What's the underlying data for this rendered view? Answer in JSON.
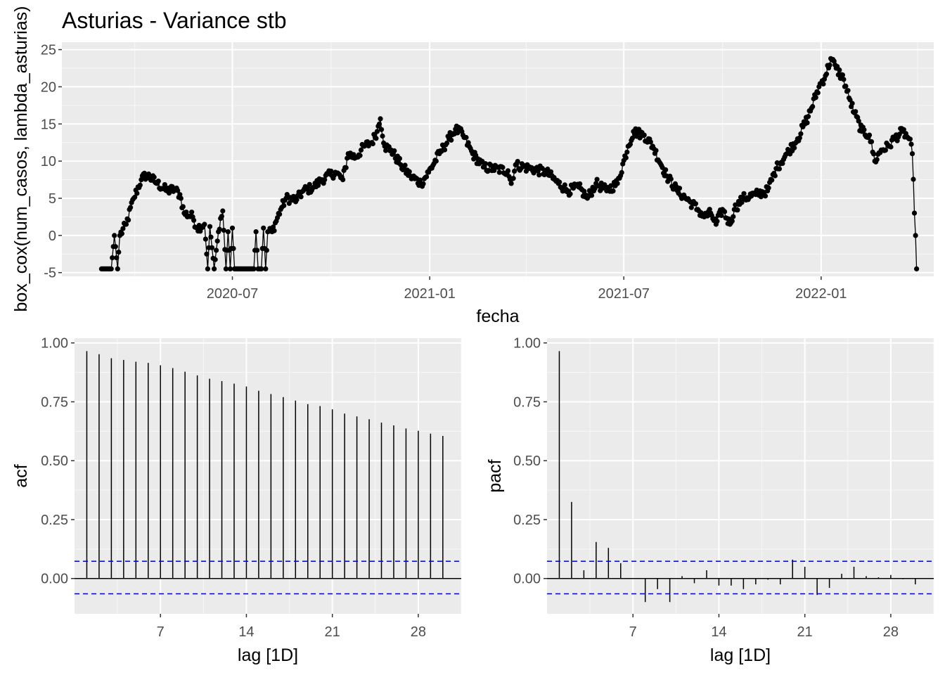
{
  "title": "Asturias - Variance stb",
  "chart_data": [
    {
      "panel": "time-series",
      "type": "line",
      "markers": true,
      "xlabel": "fecha",
      "ylabel": "box_cox(num_casos, lambda_asturias)",
      "x_ticks": [
        "2020-07",
        "2021-01",
        "2021-07",
        "2022-01"
      ],
      "y_ticks": [
        "-5",
        "0",
        "5",
        "10",
        "15",
        "20",
        "25"
      ],
      "ylim": [
        -5.5,
        26
      ],
      "xlim": [
        "2020-01-24",
        "2022-04-16"
      ],
      "grid": true,
      "anchors": [
        [
          "2020-03-01",
          -4.5
        ],
        [
          "2020-03-10",
          -4.5
        ],
        [
          "2020-03-13",
          0
        ],
        [
          "2020-03-16",
          -4.5
        ],
        [
          "2020-03-18",
          0
        ],
        [
          "2020-03-24",
          1.5
        ],
        [
          "2020-03-31",
          5
        ],
        [
          "2020-04-07",
          7.5
        ],
        [
          "2020-04-12",
          8.2
        ],
        [
          "2020-04-22",
          7
        ],
        [
          "2020-05-01",
          6
        ],
        [
          "2020-05-08",
          6.2
        ],
        [
          "2020-05-13",
          5.5
        ],
        [
          "2020-05-17",
          3
        ],
        [
          "2020-05-25",
          2.5
        ],
        [
          "2020-05-29",
          1
        ],
        [
          "2020-06-05",
          1.5
        ],
        [
          "2020-06-08",
          -4.5
        ],
        [
          "2020-06-10",
          1.2
        ],
        [
          "2020-06-14",
          -4.5
        ],
        [
          "2020-06-18",
          0.5
        ],
        [
          "2020-06-22",
          3.3
        ],
        [
          "2020-06-25",
          -4.5
        ],
        [
          "2020-06-27",
          0.5
        ],
        [
          "2020-06-29",
          -4.5
        ],
        [
          "2020-07-01",
          1
        ],
        [
          "2020-07-03",
          -4.5
        ],
        [
          "2020-07-21",
          -4.5
        ],
        [
          "2020-07-23",
          0.5
        ],
        [
          "2020-07-25",
          -4.5
        ],
        [
          "2020-07-28",
          -4.5
        ],
        [
          "2020-07-30",
          1
        ],
        [
          "2020-08-01",
          -4.5
        ],
        [
          "2020-08-03",
          0.5
        ],
        [
          "2020-08-07",
          0.5
        ],
        [
          "2020-08-15",
          3.5
        ],
        [
          "2020-08-20",
          5
        ],
        [
          "2020-08-30",
          4.8
        ],
        [
          "2020-09-05",
          6
        ],
        [
          "2020-09-15",
          6.5
        ],
        [
          "2020-09-22",
          7.5
        ],
        [
          "2020-10-05",
          8.5
        ],
        [
          "2020-10-12",
          7.5
        ],
        [
          "2020-10-17",
          11
        ],
        [
          "2020-10-24",
          10.5
        ],
        [
          "2020-11-01",
          12
        ],
        [
          "2020-11-08",
          12.5
        ],
        [
          "2020-11-13",
          14
        ],
        [
          "2020-11-16",
          15.7
        ],
        [
          "2020-11-20",
          12
        ],
        [
          "2020-11-26",
          11.5
        ],
        [
          "2020-12-05",
          9.5
        ],
        [
          "2020-12-14",
          8
        ],
        [
          "2020-12-24",
          7
        ],
        [
          "2020-12-31",
          8.5
        ],
        [
          "2021-01-10",
          11
        ],
        [
          "2021-01-19",
          13
        ],
        [
          "2021-01-25",
          14.3
        ],
        [
          "2021-02-01",
          13.5
        ],
        [
          "2021-02-10",
          11
        ],
        [
          "2021-02-20",
          9.2
        ],
        [
          "2021-03-01",
          9
        ],
        [
          "2021-03-15",
          8.7
        ],
        [
          "2021-03-18",
          7
        ],
        [
          "2021-03-22",
          9.5
        ],
        [
          "2021-04-05",
          9
        ],
        [
          "2021-04-20",
          8.5
        ],
        [
          "2021-05-01",
          7
        ],
        [
          "2021-05-10",
          6
        ],
        [
          "2021-05-20",
          6.5
        ],
        [
          "2021-05-28",
          5
        ],
        [
          "2021-06-05",
          7
        ],
        [
          "2021-06-15",
          6
        ],
        [
          "2021-06-25",
          7
        ],
        [
          "2021-07-05",
          12
        ],
        [
          "2021-07-10",
          14
        ],
        [
          "2021-07-20",
          13.5
        ],
        [
          "2021-07-28",
          12
        ],
        [
          "2021-08-10",
          8
        ],
        [
          "2021-08-20",
          6
        ],
        [
          "2021-09-01",
          4.5
        ],
        [
          "2021-09-08",
          3.5
        ],
        [
          "2021-09-14",
          2.5
        ],
        [
          "2021-09-20",
          3
        ],
        [
          "2021-09-25",
          1.5
        ],
        [
          "2021-10-01",
          3.5
        ],
        [
          "2021-10-08",
          1.5
        ],
        [
          "2021-10-12",
          3.5
        ],
        [
          "2021-10-20",
          5
        ],
        [
          "2021-11-01",
          5.5
        ],
        [
          "2021-11-12",
          6
        ],
        [
          "2021-11-20",
          9
        ],
        [
          "2021-11-30",
          11
        ],
        [
          "2021-12-10",
          13
        ],
        [
          "2021-12-20",
          16
        ],
        [
          "2021-12-30",
          20
        ],
        [
          "2022-01-05",
          21.5
        ],
        [
          "2022-01-10",
          23.8
        ],
        [
          "2022-01-15",
          22.5
        ],
        [
          "2022-01-22",
          21
        ],
        [
          "2022-01-27",
          18.5
        ],
        [
          "2022-02-01",
          16.5
        ],
        [
          "2022-02-08",
          14
        ],
        [
          "2022-02-15",
          13.5
        ],
        [
          "2022-02-20",
          10
        ],
        [
          "2022-02-26",
          11.5
        ],
        [
          "2022-03-05",
          12
        ],
        [
          "2022-03-10",
          13
        ],
        [
          "2022-03-18",
          14
        ],
        [
          "2022-03-24",
          13
        ],
        [
          "2022-03-27",
          11
        ],
        [
          "2022-03-29",
          3
        ],
        [
          "2022-03-30",
          0
        ],
        [
          "2022-03-31",
          -4.5
        ]
      ]
    },
    {
      "panel": "acf",
      "type": "bar",
      "xlabel": "lag [1D]",
      "ylabel": "acf",
      "x_ticks": [
        7,
        14,
        21,
        28
      ],
      "y_ticks": [
        "0.00",
        "0.25",
        "0.50",
        "0.75",
        "1.00"
      ],
      "ylim": [
        -0.15,
        1.02
      ],
      "xlim": [
        0,
        31.5
      ],
      "lags": [
        1,
        2,
        3,
        4,
        5,
        6,
        7,
        8,
        9,
        10,
        11,
        12,
        13,
        14,
        15,
        16,
        17,
        18,
        19,
        20,
        21,
        22,
        23,
        24,
        25,
        26,
        27,
        28,
        29,
        30
      ],
      "values": [
        0.965,
        0.952,
        0.935,
        0.928,
        0.92,
        0.915,
        0.905,
        0.893,
        0.878,
        0.862,
        0.848,
        0.838,
        0.827,
        0.815,
        0.797,
        0.783,
        0.77,
        0.755,
        0.74,
        0.732,
        0.718,
        0.7,
        0.688,
        0.676,
        0.662,
        0.65,
        0.637,
        0.627,
        0.615,
        0.605
      ],
      "ci": [
        0.073,
        -0.065
      ]
    },
    {
      "panel": "pacf",
      "type": "bar",
      "xlabel": "lag [1D]",
      "ylabel": "pacf",
      "x_ticks": [
        7,
        14,
        21,
        28
      ],
      "y_ticks": [
        "0.00",
        "0.25",
        "0.50",
        "0.75",
        "1.00"
      ],
      "ylim": [
        -0.15,
        1.02
      ],
      "xlim": [
        0,
        31.5
      ],
      "lags": [
        1,
        2,
        3,
        4,
        5,
        6,
        7,
        8,
        9,
        10,
        11,
        12,
        13,
        14,
        15,
        16,
        17,
        18,
        19,
        20,
        21,
        22,
        23,
        24,
        25,
        26,
        27,
        28,
        29,
        30
      ],
      "values": [
        0.965,
        0.325,
        0.035,
        0.155,
        0.13,
        0.065,
        0.0,
        -0.1,
        -0.045,
        -0.1,
        0.01,
        -0.02,
        0.035,
        -0.03,
        -0.03,
        -0.045,
        -0.025,
        -0.005,
        -0.025,
        0.08,
        0.05,
        -0.07,
        -0.04,
        0.02,
        0.05,
        0.01,
        0.005,
        0.015,
        -0.003,
        -0.025
      ],
      "ci": [
        0.073,
        -0.065
      ]
    }
  ]
}
